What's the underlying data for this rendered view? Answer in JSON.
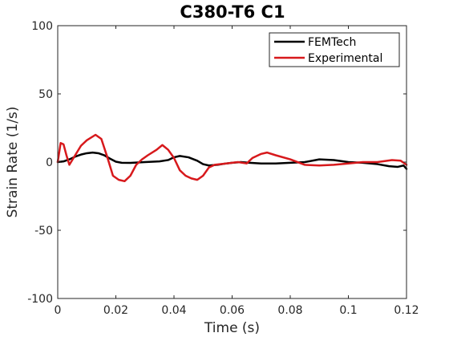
{
  "chart_data": {
    "type": "line",
    "title": "C380-T6 C1",
    "xlabel": "Time (s)",
    "ylabel": "Strain Rate (1/s)",
    "xlim": [
      0,
      0.12
    ],
    "ylim": [
      -100,
      100
    ],
    "xticks": [
      0,
      0.02,
      0.04,
      0.06,
      0.08,
      0.1,
      0.12
    ],
    "xtick_labels": [
      "0",
      "0.02",
      "0.04",
      "0.06",
      "0.08",
      "0.1",
      "0.12"
    ],
    "yticks": [
      -100,
      -50,
      0,
      50,
      100
    ],
    "ytick_labels": [
      "-100",
      "-50",
      "0",
      "50",
      "100"
    ],
    "grid": false,
    "legend": {
      "placement": "top-right"
    },
    "series": [
      {
        "name": "FEMTech",
        "color": "#000000",
        "x": [
          0,
          0.002,
          0.004,
          0.006,
          0.008,
          0.01,
          0.012,
          0.014,
          0.016,
          0.018,
          0.02,
          0.022,
          0.025,
          0.03,
          0.035,
          0.038,
          0.04,
          0.042,
          0.045,
          0.048,
          0.05,
          0.052,
          0.055,
          0.058,
          0.06,
          0.063,
          0.066,
          0.07,
          0.075,
          0.08,
          0.085,
          0.09,
          0.095,
          0.1,
          0.105,
          0.11,
          0.114,
          0.117,
          0.119,
          0.12
        ],
        "y": [
          0,
          0.5,
          2,
          4,
          5.5,
          6.5,
          7,
          6.5,
          5,
          2.5,
          0.3,
          -0.5,
          -0.6,
          0,
          0.5,
          1.5,
          3.5,
          4.5,
          3.5,
          1,
          -1.5,
          -2.5,
          -2,
          -1,
          -0.5,
          0,
          -0.5,
          -1,
          -1,
          -0.5,
          0,
          2,
          1.5,
          0,
          -0.5,
          -1.5,
          -3,
          -3.5,
          -2.5,
          -5
        ]
      },
      {
        "name": "Experimental",
        "color": "#d7191c",
        "x": [
          0,
          0.001,
          0.002,
          0.003,
          0.004,
          0.006,
          0.008,
          0.01,
          0.013,
          0.015,
          0.017,
          0.019,
          0.021,
          0.023,
          0.025,
          0.027,
          0.029,
          0.031,
          0.034,
          0.036,
          0.038,
          0.04,
          0.042,
          0.044,
          0.046,
          0.048,
          0.05,
          0.052,
          0.054,
          0.058,
          0.062,
          0.065,
          0.067,
          0.07,
          0.072,
          0.075,
          0.08,
          0.085,
          0.09,
          0.095,
          0.1,
          0.105,
          0.11,
          0.115,
          0.118,
          0.12
        ],
        "y": [
          0,
          14,
          13,
          5,
          -2,
          5,
          12,
          16,
          20,
          17,
          4,
          -10,
          -13,
          -14,
          -10,
          -2,
          2,
          5,
          9,
          12.5,
          9,
          3,
          -6,
          -10,
          -12,
          -13,
          -10,
          -4,
          -2,
          -1,
          0,
          -1,
          3,
          6,
          7,
          5,
          2,
          -2,
          -2.5,
          -2,
          -1,
          0,
          0,
          1.5,
          1,
          -2
        ]
      }
    ]
  }
}
